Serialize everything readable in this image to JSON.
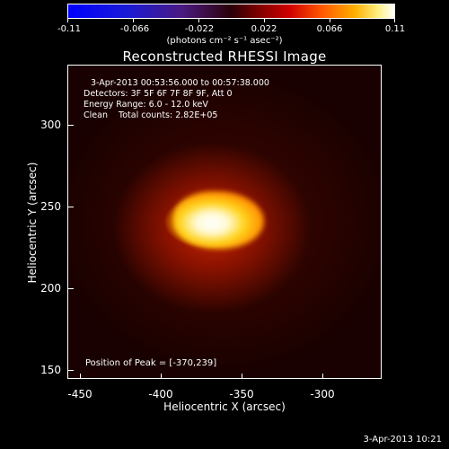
{
  "colorbar": {
    "ticks": [
      "-0.11",
      "-0.066",
      "-0.022",
      "0.022",
      "0.066",
      "0.11"
    ],
    "units": "(photons cm⁻² s⁻¹ asec⁻²)"
  },
  "title": "Reconstructed RHESSI Image",
  "info": {
    "line1": "3-Apr-2013 00:53:56.000 to 00:57:38.000",
    "line2": "Detectors: 3F 5F 6F 7F 8F 9F, Att 0",
    "line3": "Energy Range: 6.0 - 12.0 keV",
    "line4": "Clean    Total counts: 2.82E+05",
    "peak": "Position of Peak = [-370,239]"
  },
  "axes": {
    "xlabel": "Heliocentric X (arcsec)",
    "ylabel": "Heliocentric Y (arcsec)",
    "xticks": [
      "-450",
      "-400",
      "-350",
      "-300"
    ],
    "yticks": [
      "150",
      "200",
      "250",
      "300"
    ]
  },
  "timestamp": "3-Apr-2013 10:21"
}
